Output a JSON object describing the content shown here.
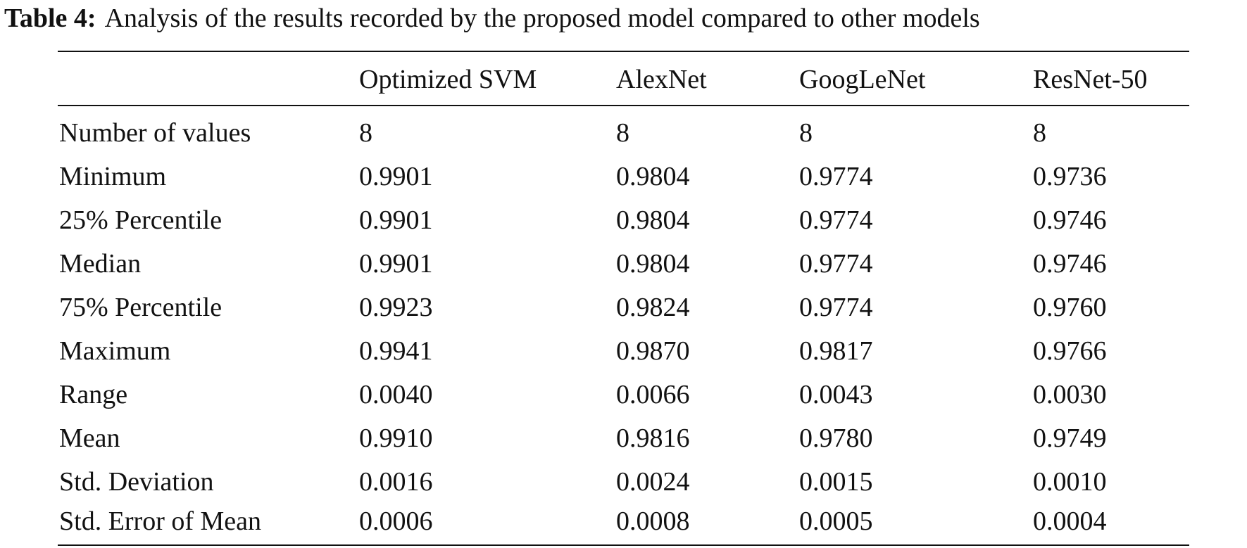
{
  "caption": {
    "label": "Table 4:",
    "text": "Analysis of the results recorded by the proposed model compared to other models"
  },
  "table": {
    "headers": [
      "",
      "Optimized SVM",
      "AlexNet",
      "GoogLeNet",
      "ResNet-50"
    ],
    "rows": [
      [
        "Number of values",
        "8",
        "8",
        "8",
        "8"
      ],
      [
        "Minimum",
        "0.9901",
        "0.9804",
        "0.9774",
        "0.9736"
      ],
      [
        "25% Percentile",
        "0.9901",
        "0.9804",
        "0.9774",
        "0.9746"
      ],
      [
        "Median",
        "0.9901",
        "0.9804",
        "0.9774",
        "0.9746"
      ],
      [
        "75% Percentile",
        "0.9923",
        "0.9824",
        "0.9774",
        "0.9760"
      ],
      [
        "Maximum",
        "0.9941",
        "0.9870",
        "0.9817",
        "0.9766"
      ],
      [
        "Range",
        "0.0040",
        "0.0066",
        "0.0043",
        "0.0030"
      ],
      [
        "Mean",
        "0.9910",
        "0.9816",
        "0.9780",
        "0.9749"
      ],
      [
        "Std. Deviation",
        "0.0016",
        "0.0024",
        "0.0015",
        "0.0010"
      ],
      [
        "Std. Error of Mean",
        "0.0006",
        "0.0008",
        "0.0005",
        "0.0004"
      ]
    ]
  }
}
